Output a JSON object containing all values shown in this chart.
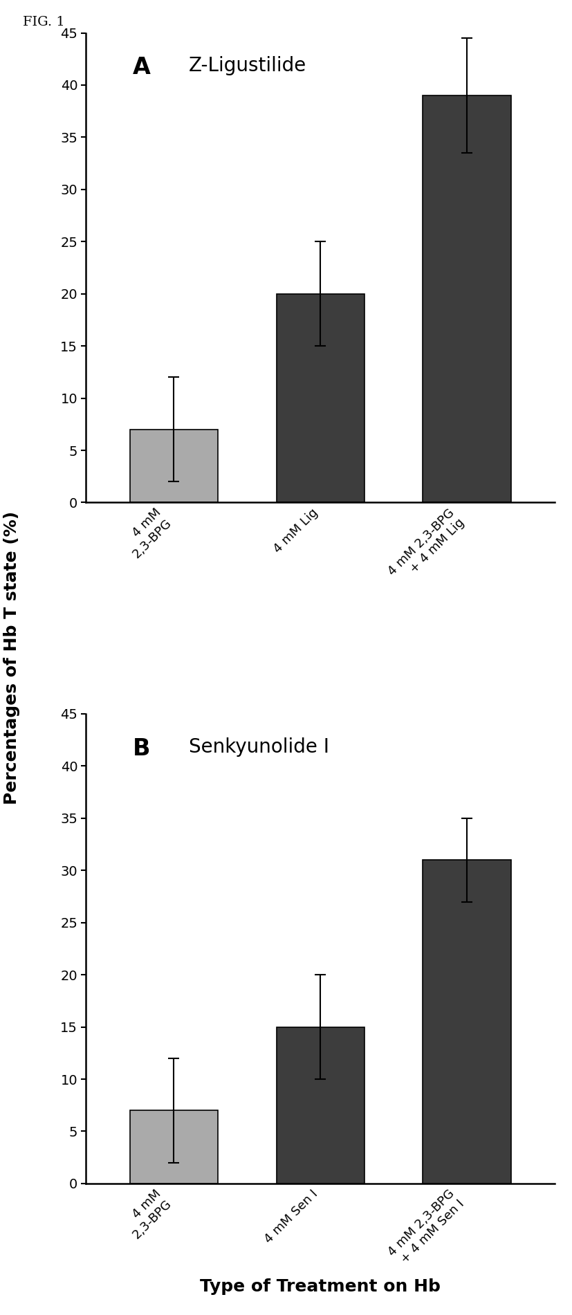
{
  "fig_label": "FIG. 1",
  "panel_A": {
    "title_letter": "A",
    "title_text": "Z-Ligustilide",
    "categories": [
      "4 mM\n2,3-BPG",
      "4 mM Lig",
      "4 mM 2,3-BPG\n+ 4 mM Lig"
    ],
    "values": [
      7.0,
      20.0,
      39.0
    ],
    "errors": [
      5.0,
      5.0,
      5.5
    ],
    "bar_colors": [
      "#aaaaaa",
      "#3d3d3d",
      "#3d3d3d"
    ],
    "ylim": [
      0,
      45
    ],
    "yticks": [
      0,
      5,
      10,
      15,
      20,
      25,
      30,
      35,
      40,
      45
    ]
  },
  "panel_B": {
    "title_letter": "B",
    "title_text": "Senkyunolide I",
    "categories": [
      "4 mM\n2,3-BPG",
      "4 mM Sen I",
      "4 mM 2,3-BPG\n+ 4 mM Sen I"
    ],
    "values": [
      7.0,
      15.0,
      31.0
    ],
    "errors": [
      5.0,
      5.0,
      4.0
    ],
    "bar_colors": [
      "#aaaaaa",
      "#3d3d3d",
      "#3d3d3d"
    ],
    "ylim": [
      0,
      45
    ],
    "yticks": [
      0,
      5,
      10,
      15,
      20,
      25,
      30,
      35,
      40,
      45
    ]
  },
  "ylabel": "Percentages of Hb T state (%)",
  "xlabel": "Type of Treatment on Hb",
  "background_color": "#ffffff",
  "bar_width": 0.6,
  "tick_rotation": 45,
  "fig_label_fontsize": 14,
  "title_letter_fontsize": 24,
  "title_text_fontsize": 20,
  "ylabel_fontsize": 18,
  "xlabel_fontsize": 18,
  "ytick_fontsize": 14,
  "xtick_fontsize": 13
}
